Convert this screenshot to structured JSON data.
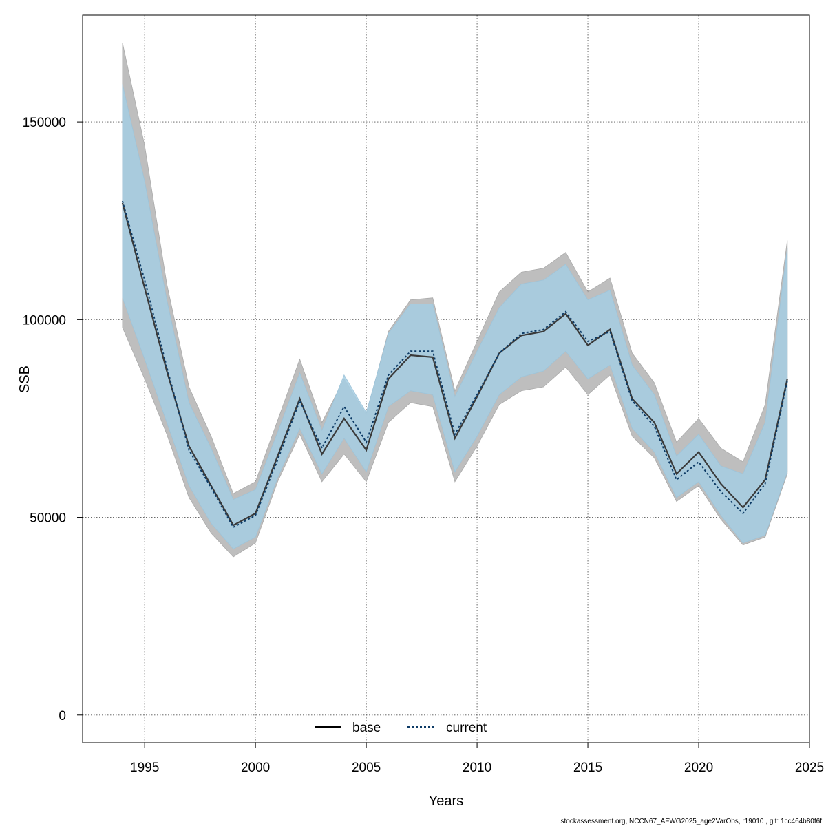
{
  "chart_data": {
    "type": "line",
    "xlabel": "Years",
    "ylabel": "SSB",
    "xlim": [
      1992.2,
      2025.0
    ],
    "ylim": [
      -7000,
      177000
    ],
    "xticks": [
      1995,
      2000,
      2005,
      2010,
      2015,
      2020,
      2025
    ],
    "yticks": [
      0,
      50000,
      100000,
      150000
    ],
    "grid": true,
    "legend_position": "bottom",
    "x": [
      1994,
      1995,
      1996,
      1997,
      1998,
      1999,
      2000,
      2001,
      2002,
      2003,
      2004,
      2005,
      2006,
      2007,
      2008,
      2009,
      2010,
      2011,
      2012,
      2013,
      2014,
      2015,
      2016,
      2017,
      2018,
      2019,
      2020,
      2021,
      2022,
      2023,
      2024
    ],
    "series": [
      {
        "name": "base",
        "color": "#000000",
        "line_style": "solid",
        "band_color": "#bebebe",
        "values": [
          129500,
          108000,
          87000,
          68000,
          58000,
          48000,
          51000,
          65500,
          80000,
          66000,
          75000,
          67000,
          85000,
          91000,
          90500,
          70000,
          80500,
          91500,
          96000,
          97000,
          101500,
          93500,
          97500,
          80000,
          74000,
          61000,
          66500,
          58500,
          52500,
          59500,
          85000
        ],
        "lower": [
          98000,
          85000,
          71000,
          55000,
          46000,
          40000,
          43500,
          59000,
          71000,
          59000,
          66000,
          59000,
          74000,
          79000,
          78000,
          59000,
          68000,
          78500,
          82000,
          83000,
          88000,
          81000,
          86000,
          70500,
          65000,
          54000,
          58000,
          49500,
          43000,
          45000,
          61000
        ],
        "upper": [
          170000,
          144000,
          109000,
          83000,
          70500,
          56000,
          59000,
          74500,
          90000,
          74000,
          85000,
          76000,
          97000,
          105000,
          105500,
          82000,
          94500,
          107000,
          112000,
          113000,
          117000,
          107000,
          110500,
          91500,
          84000,
          69000,
          75000,
          67500,
          64000,
          78500,
          120000
        ]
      },
      {
        "name": "current",
        "color": "#1f77b4",
        "line_style": "dotted",
        "band_color": "#a6cee3",
        "values": [
          130000,
          110000,
          88000,
          67000,
          57500,
          47500,
          50500,
          64500,
          79500,
          67500,
          78000,
          69000,
          86000,
          92000,
          92000,
          71000,
          81000,
          91500,
          96500,
          97500,
          102000,
          94500,
          97000,
          79500,
          73000,
          59500,
          64000,
          56500,
          51000,
          58500,
          84500
        ],
        "lower": [
          105500,
          90000,
          74000,
          58000,
          48500,
          42000,
          45000,
          60000,
          72500,
          61000,
          70000,
          61500,
          78000,
          82000,
          81000,
          61500,
          70500,
          81000,
          85500,
          87000,
          92000,
          85000,
          88500,
          72500,
          66500,
          55000,
          59000,
          50500,
          43500,
          45500,
          61500
        ],
        "upper": [
          159500,
          135000,
          105000,
          79000,
          67500,
          54500,
          57000,
          71500,
          86500,
          72000,
          86000,
          76500,
          96500,
          104000,
          104000,
          80500,
          92000,
          103000,
          109000,
          110000,
          114000,
          105000,
          107500,
          88500,
          81000,
          65500,
          71000,
          63000,
          61000,
          74000,
          118000
        ]
      }
    ],
    "footer": "stockassessment.org, NCCN67_AFWG2025_age2VarObs, r19010 , git: 1cc464b80f6f"
  }
}
